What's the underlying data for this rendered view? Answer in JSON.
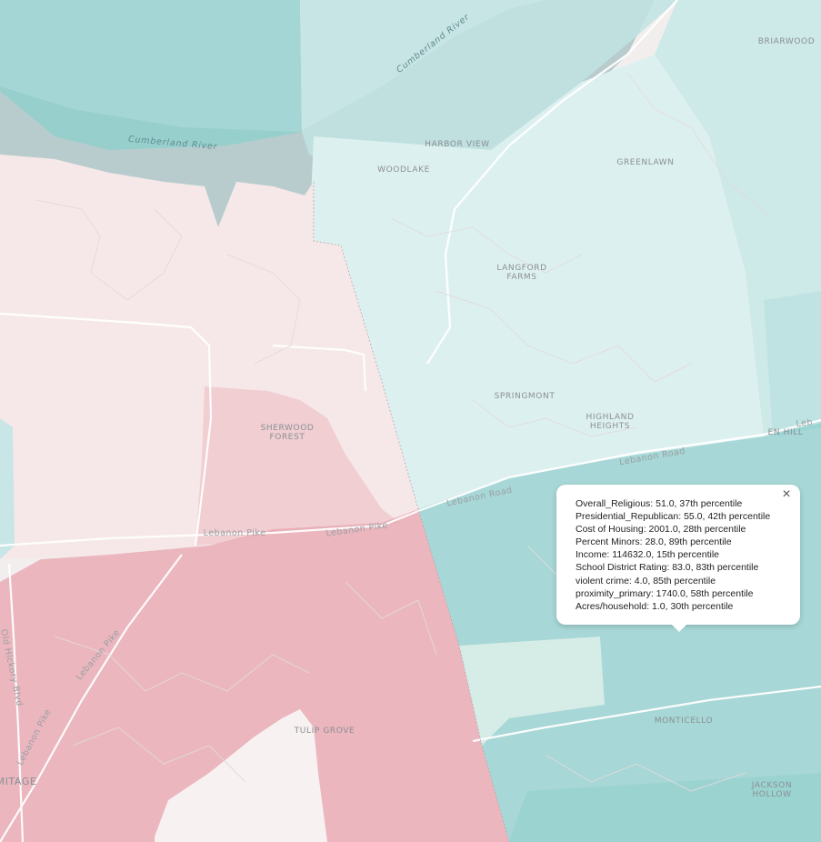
{
  "map": {
    "places": [
      {
        "name": "BRIARWOOD",
        "lines": [
          "BRIARWOOD"
        ]
      },
      {
        "name": "HARBOR VIEW",
        "lines": [
          "HARBOR VIEW"
        ]
      },
      {
        "name": "WOODLAKE",
        "lines": [
          "WOODLAKE"
        ]
      },
      {
        "name": "GREENLAWN",
        "lines": [
          "GREENLAWN"
        ]
      },
      {
        "name": "LANGFORD FARMS",
        "lines": [
          "LANGFORD",
          "FARMS"
        ]
      },
      {
        "name": "SPRINGMONT",
        "lines": [
          "SPRINGMONT"
        ]
      },
      {
        "name": "HIGHLAND HEIGHTS",
        "lines": [
          "HIGHLAND",
          "HEIGHTS"
        ]
      },
      {
        "name": "EN HILL",
        "lines": [
          "EN HILL"
        ]
      },
      {
        "name": "SHERWOOD FOREST",
        "lines": [
          "SHERWOOD",
          "FOREST"
        ]
      },
      {
        "name": "TULIP GROVE",
        "lines": [
          "TULIP GROVE"
        ]
      },
      {
        "name": "MONTICELLO",
        "lines": [
          "MONTICELLO"
        ]
      },
      {
        "name": "JACKSON HOLLOW",
        "lines": [
          "JACKSON",
          "HOLLOW"
        ]
      },
      {
        "name": "MITAGE",
        "lines": [
          "MITAGE"
        ]
      }
    ],
    "roads": [
      {
        "name": "Cumberland River",
        "kind": "river"
      },
      {
        "name": "Cumberland River",
        "kind": "river"
      },
      {
        "name": "Lebanon Road",
        "kind": "road"
      },
      {
        "name": "Lebanon Road",
        "kind": "road"
      },
      {
        "name": "Lebanon Pike",
        "kind": "road"
      },
      {
        "name": "Lebanon Pike",
        "kind": "road"
      },
      {
        "name": "Lebanon Pike",
        "kind": "road"
      },
      {
        "name": "Lebanon Pike",
        "kind": "road"
      },
      {
        "name": "Old Hickory Blvd",
        "kind": "road"
      },
      {
        "name": "Leb",
        "kind": "road"
      }
    ],
    "colors": {
      "land": "#f2eeee",
      "water": "#b9cccd",
      "teal_dark": "#8ecfcd",
      "teal_mid": "#bfe3e2",
      "teal_light": "#ddf0f0",
      "pink_light": "#f6e8e8",
      "pink_mid": "#eec6cb",
      "pink_strong": "#e8a7b1"
    }
  },
  "popup": {
    "lines": [
      "Overall_Religious: 51.0, 37th percentile",
      "Presidential_Republican: 55.0, 42th percentile",
      "Cost of Housing: 2001.0, 28th percentile",
      "Percent Minors: 28.0, 89th percentile",
      "Income: 114632.0, 15th percentile",
      "School District Rating: 83.0, 83th percentile",
      "violent crime: 4.0, 85th percentile",
      "proximity_primary: 1740.0, 58th percentile",
      "Acres/household: 1.0, 30th percentile"
    ],
    "close_label": "×"
  }
}
